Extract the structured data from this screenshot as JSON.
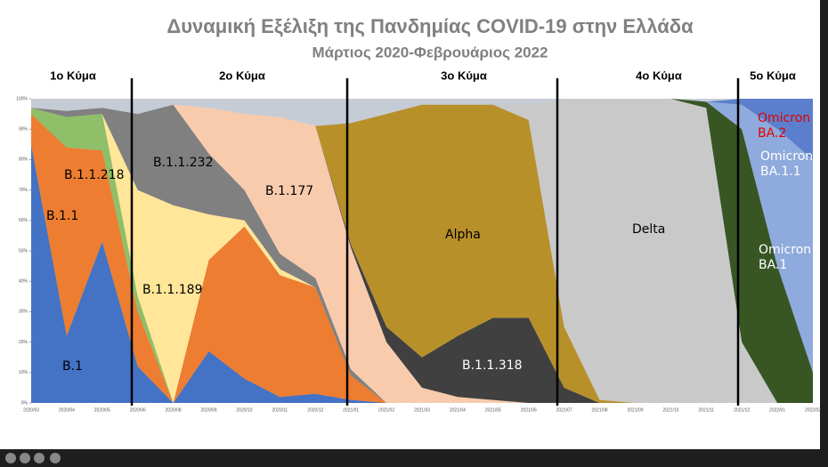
{
  "chart_data": {
    "type": "stacked_area",
    "title": "Δυναμική Εξέλιξη της Πανδημίας COVID-19 στην Ελλάδα",
    "subtitle": "Μάρτιος 2020-Φεβρουάριος 2022",
    "annotations": [
      "1ο Κύμα",
      "2ο Κύμα",
      "3ο Κύμα",
      "4ο Κύμα",
      "5ο Κύμα"
    ],
    "categories": [
      "2020/03",
      "2020/04",
      "2020/05",
      "2020/06",
      "2020/08",
      "2020/09",
      "2020/10",
      "2020/11",
      "2020/12",
      "2021/01",
      "2021/02",
      "2021/03",
      "2021/04",
      "2021/05",
      "2021/06",
      "2021/07",
      "2021/08",
      "2021/09",
      "2021/10",
      "2021/11",
      "2021/12",
      "2022/01",
      "2022/02"
    ],
    "ylim": [
      0,
      100
    ],
    "yticks": [
      {
        "value": 0,
        "label": "0%"
      },
      {
        "value": 10,
        "label": "10%"
      },
      {
        "value": 20,
        "label": "20%"
      },
      {
        "value": 30,
        "label": "30%"
      },
      {
        "value": 40,
        "label": "40%"
      },
      {
        "value": 50,
        "label": "50%"
      },
      {
        "value": 60,
        "label": "60%"
      },
      {
        "value": 70,
        "label": "70%"
      },
      {
        "value": 80,
        "label": "80%"
      },
      {
        "value": 90,
        "label": "90%"
      },
      {
        "value": 100,
        "label": "100%"
      }
    ],
    "series": [
      {
        "name": "B.1",
        "color": "#4472c4",
        "values": [
          85,
          22,
          53,
          12,
          0,
          17,
          8,
          2,
          3,
          1,
          0,
          0,
          0,
          0,
          0,
          0,
          0,
          0,
          0,
          0,
          0,
          0,
          0
        ]
      },
      {
        "name": "B.1.1",
        "color": "#ed7d31",
        "values": [
          10,
          62,
          30,
          18,
          0,
          30,
          50,
          40,
          35,
          8,
          0,
          0,
          0,
          0,
          0,
          0,
          0,
          0,
          0,
          0,
          0,
          0,
          0
        ]
      },
      {
        "name": "B.1.1.218",
        "color": "#8fbf68",
        "values": [
          2,
          10,
          12,
          5,
          0,
          0,
          0,
          0,
          0,
          0,
          0,
          0,
          0,
          0,
          0,
          0,
          0,
          0,
          0,
          0,
          0,
          0,
          0
        ]
      },
      {
        "name": "B.1.1.189",
        "color": "#ffe699",
        "values": [
          0,
          0,
          0,
          35,
          65,
          15,
          2,
          2,
          0,
          0,
          0,
          0,
          0,
          0,
          0,
          0,
          0,
          0,
          0,
          0,
          0,
          0,
          0
        ]
      },
      {
        "name": "B.1.1.232",
        "color": "#808080",
        "values": [
          0,
          2,
          2,
          25,
          33,
          20,
          10,
          5,
          3,
          2,
          0,
          0,
          0,
          0,
          0,
          0,
          0,
          0,
          0,
          0,
          0,
          0,
          0
        ]
      },
      {
        "name": "B.1.177",
        "color": "#f8cbad",
        "values": [
          0,
          0,
          0,
          0,
          0,
          15,
          25,
          45,
          50,
          40,
          20,
          5,
          2,
          1,
          0,
          0,
          0,
          0,
          0,
          0,
          0,
          0,
          0
        ]
      },
      {
        "name": "B.1.1.318",
        "color": "#404040",
        "values": [
          0,
          0,
          0,
          0,
          0,
          0,
          0,
          0,
          0,
          1,
          5,
          10,
          20,
          27,
          28,
          5,
          0,
          0,
          0,
          0,
          0,
          0,
          0
        ]
      },
      {
        "name": "Alpha",
        "color": "#b8902a",
        "values": [
          0,
          0,
          0,
          0,
          0,
          0,
          0,
          0,
          0,
          40,
          70,
          83,
          76,
          70,
          65,
          20,
          1,
          0,
          0,
          0,
          0,
          0,
          0
        ]
      },
      {
        "name": "Delta",
        "color": "#c9c9c9",
        "values": [
          0,
          0,
          0,
          0,
          0,
          0,
          0,
          0,
          0,
          0,
          0,
          0,
          0,
          0,
          5,
          75,
          99,
          100,
          100,
          97,
          20,
          0,
          0
        ]
      },
      {
        "name": "Omicron BA.1",
        "color": "#375623",
        "values": [
          0,
          0,
          0,
          0,
          0,
          0,
          0,
          0,
          0,
          0,
          0,
          0,
          0,
          0,
          0,
          0,
          0,
          0,
          0,
          2,
          70,
          45,
          10
        ]
      },
      {
        "name": "Omicron BA.1.1",
        "color": "#8faadc",
        "values": [
          0,
          0,
          0,
          0,
          0,
          0,
          0,
          0,
          0,
          0,
          0,
          0,
          0,
          0,
          0,
          0,
          0,
          0,
          0,
          0,
          8,
          45,
          70
        ]
      },
      {
        "name": "Omicron BA.2",
        "color": "#5b7fcc",
        "values": [
          0,
          0,
          0,
          0,
          0,
          0,
          0,
          0,
          0,
          0,
          0,
          0,
          0,
          0,
          0,
          0,
          0,
          0,
          0,
          0,
          2,
          10,
          20
        ]
      }
    ]
  }
}
